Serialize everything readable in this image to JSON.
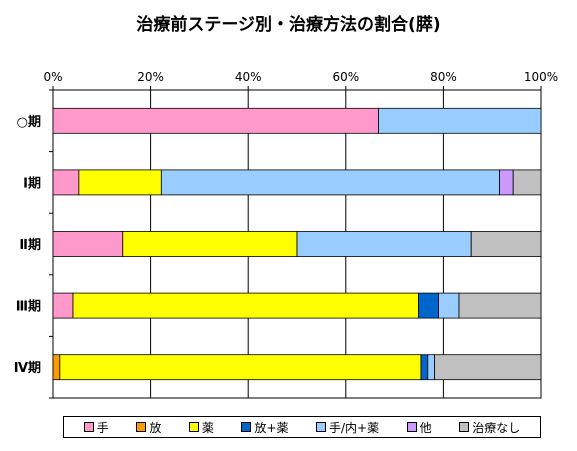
{
  "chart_data": {
    "type": "bar",
    "orientation": "horizontal",
    "stacked": true,
    "title": "治療前ステージ別・治療方法の割合(膵)",
    "categories": [
      "○期",
      "Ⅰ期",
      "Ⅱ期",
      "Ⅲ期",
      "Ⅳ期"
    ],
    "xticks": [
      "0%",
      "20%",
      "40%",
      "60%",
      "80%",
      "100%"
    ],
    "xlim": [
      0,
      100
    ],
    "grid": true,
    "legend_position": "bottom",
    "series": [
      {
        "name": "手",
        "color": "#ff99cc",
        "values": [
          66.7,
          5.3,
          14.3,
          4.1,
          0.0
        ]
      },
      {
        "name": "放",
        "color": "#ff9900",
        "values": [
          0.0,
          0.0,
          0.0,
          0.0,
          1.4
        ]
      },
      {
        "name": "薬",
        "color": "#ffff00",
        "values": [
          0.0,
          16.9,
          35.7,
          70.8,
          74.0
        ]
      },
      {
        "name": "放+薬",
        "color": "#0066cc",
        "values": [
          0.0,
          0.0,
          0.0,
          4.1,
          1.4
        ]
      },
      {
        "name": "手/内+薬",
        "color": "#99ccff",
        "values": [
          33.3,
          69.3,
          35.7,
          4.2,
          1.4
        ]
      },
      {
        "name": "他",
        "color": "#cc99ff",
        "values": [
          0.0,
          2.8,
          0.0,
          0.0,
          0.0
        ]
      },
      {
        "name": "治療なし",
        "color": "#c0c0c0",
        "values": [
          0.0,
          5.7,
          14.3,
          16.8,
          21.8
        ]
      }
    ]
  }
}
